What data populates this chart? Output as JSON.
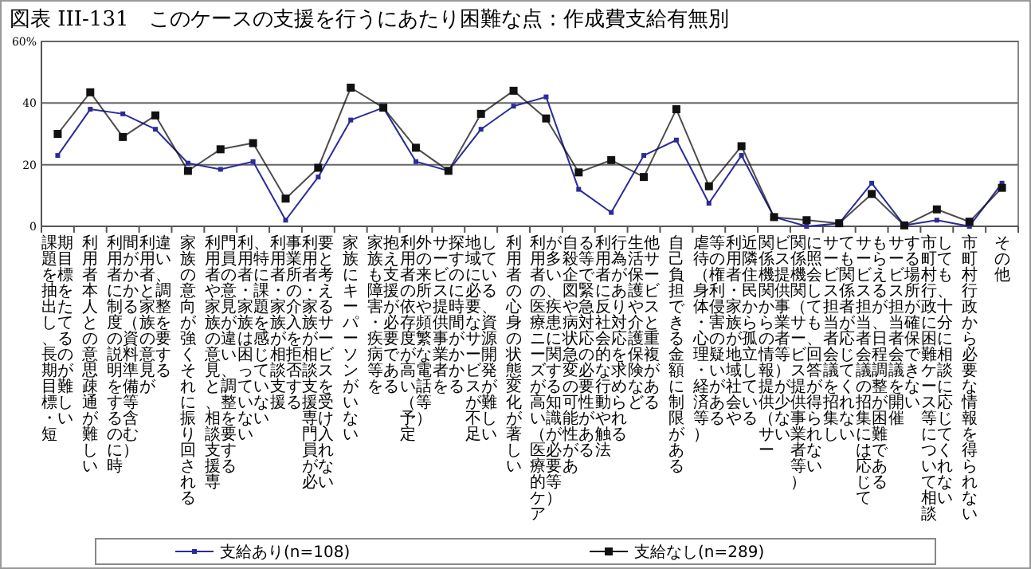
{
  "chart_data": {
    "type": "line",
    "title": "図表 III-131　このケースの支援を行うにあたり困難な点：作成費支給有無別",
    "categories": [
      "課題を抽出し、長期目標・短期目標をたてるのが難しい",
      "利用者本人との意思疎通が難しい",
      "利用者に制度の説明をするのに時間がかかる（資料準備等含む）",
      "利用者と家族の意見が違い、調整を要する",
      "家族の意向が強くそれに振り回される",
      "利用者や家族の意見と、相談支援専門員の意見が違い、調整を要する",
      "利用者・家族は困っていない、特に課題を感じていない",
      "利用者・家族が相談支援事業所の介入を拒否する",
      "利用者・家族が相談支援専門員が必要と考えるサービスを受け入れない",
      "家族にキーパーソンがいない",
      "家族も障害・疾病等を抱え支援が必要である",
      "利用者の依存度が高い（予定外の来所や頻繁な電話等）",
      "サービス提供事業者を探すのに時間がかかる",
      "地域に必要なサービスが不足している、資源開発が難しい",
      "利用者の心身の状態変化が著しい",
      "利用者の医療ニーズが高い（医療的ケアが多い、疾患に関する知識が必要等）",
      "自殺企図や病状急変の可能性がある等で緊急対応の必要性がある",
      "利用者に反社会的な行動や触法行為があり対応を求められる",
      "生活保護や介護保険など他サービスと重複がある",
      "自己負担できる金額に制限がある",
      "虐待（身体・心理・経済等）等の権利侵害の疑いがある",
      "利用者・家族が地域社会や近隣住民から孤立している",
      "関係機関からの情報提供（サービス提供事業者等）が少ない",
      "関係機関（サービス提供事業者等）に照会しても、回答が得られない",
      "サービス担当者会議を招集しても関係者が応じてくれない",
      "サービス担当者会議の招集には応じてもらえるが、日程調整が困難である",
      "サービス担当者会議を開催する場所が確保できない",
      "市町村行政に困難ケース等について相談しても、十分に相談に応じてくれない",
      "市町村行政から必要な情報を得られない",
      "その他"
    ],
    "series": [
      {
        "name": "支給あり(n=108)",
        "color": "#2b2b9a",
        "values": [
          23,
          38,
          36.5,
          31.5,
          20.5,
          18.5,
          21,
          2,
          16,
          34.5,
          38.5,
          21,
          18,
          31.5,
          39,
          42,
          12,
          4.5,
          23,
          28,
          7.5,
          23,
          3,
          0,
          1,
          14,
          0.3,
          2,
          0,
          14
        ]
      },
      {
        "name": "支給なし(n=289)",
        "color": "#111111",
        "values": [
          30,
          43.5,
          29,
          36,
          18,
          25,
          27,
          9,
          19,
          45,
          38.5,
          25.5,
          18,
          36.5,
          44,
          35,
          17.5,
          21.5,
          16,
          38,
          13,
          26,
          3,
          2,
          1,
          10.5,
          0.3,
          5.5,
          1.5,
          12.5
        ]
      }
    ],
    "ylim": [
      0,
      60
    ],
    "yticks": [
      0,
      20,
      40,
      {
        "value": 60,
        "label": "60%"
      }
    ],
    "grid": "y",
    "legend": "bottom",
    "marker": "square",
    "line_style": "solid"
  }
}
